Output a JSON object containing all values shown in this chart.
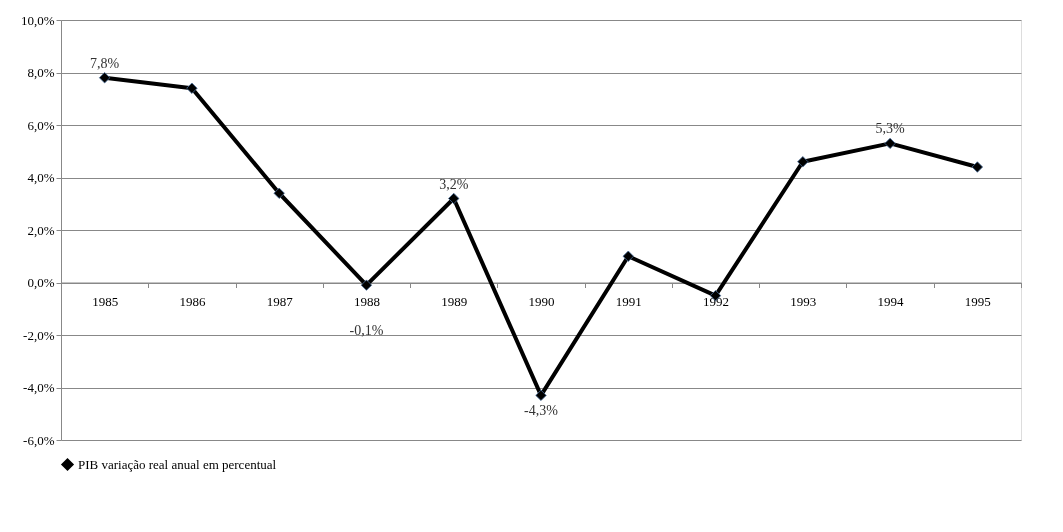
{
  "chart_data": {
    "type": "line",
    "categories": [
      "1985",
      "1986",
      "1987",
      "1988",
      "1989",
      "1990",
      "1991",
      "1992",
      "1993",
      "1994",
      "1995"
    ],
    "series": [
      {
        "name": "PIB variação real anual em percentual",
        "color": "#000000",
        "values": [
          7.8,
          7.4,
          3.4,
          -0.1,
          3.2,
          -4.3,
          1.0,
          -0.5,
          4.6,
          5.3,
          4.4
        ],
        "value_labels": [
          "7,8%",
          null,
          null,
          "-0,1%",
          "3,2%",
          "-4,3%",
          null,
          null,
          null,
          "5,3%",
          null
        ]
      }
    ],
    "ylim": [
      -6,
      10
    ],
    "yticks": [
      {
        "value": -6,
        "label": "-6,0%"
      },
      {
        "value": -4,
        "label": "-4,0%"
      },
      {
        "value": -2,
        "label": "-2,0%"
      },
      {
        "value": 0,
        "label": "0,0%"
      },
      {
        "value": 2,
        "label": "2,0%"
      },
      {
        "value": 4,
        "label": "4,0%"
      },
      {
        "value": 6,
        "label": "6,0%"
      },
      {
        "value": 8,
        "label": "8,0%"
      },
      {
        "value": 10,
        "label": "10,0%"
      }
    ],
    "grid": "y",
    "legend": "bottom",
    "marker": "diamond",
    "line_style": "solid"
  }
}
